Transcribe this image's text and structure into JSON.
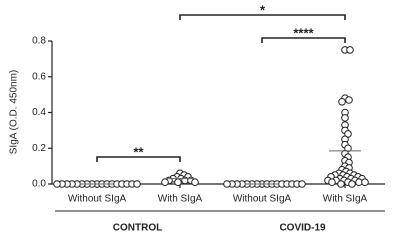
{
  "chart_data": {
    "type": "strip",
    "y_label": "SIgA (O.D. 450nm)",
    "categories": [
      "Without SIgA",
      "With SIgA",
      "Without SIgA",
      "With SIgA"
    ],
    "groups": [
      {
        "name": "CONTROL",
        "categories": [
          0,
          1
        ]
      },
      {
        "name": "COVID-19",
        "categories": [
          2,
          3
        ]
      }
    ],
    "values": [
      [
        0,
        0,
        0,
        0,
        0,
        0,
        0,
        0,
        0,
        0,
        0,
        0,
        0,
        0,
        0,
        0,
        0
      ],
      [
        0.06,
        0.05,
        0.04,
        0.04,
        0.03,
        0.03,
        0.02,
        0.02,
        0.02,
        0.01,
        0.01,
        0.01
      ],
      [
        0,
        0,
        0,
        0,
        0,
        0,
        0,
        0,
        0,
        0,
        0,
        0,
        0,
        0,
        0,
        0
      ],
      [
        0.75,
        0.75,
        0.48,
        0.47,
        0.46,
        0.4,
        0.37,
        0.33,
        0.3,
        0.28,
        0.25,
        0.22,
        0.2,
        0.17,
        0.15,
        0.13,
        0.12,
        0.1,
        0.09,
        0.08,
        0.07,
        0.06,
        0.06,
        0.05,
        0.05,
        0.05,
        0.04,
        0.04,
        0.04,
        0.03,
        0.03,
        0.03,
        0.02,
        0.02,
        0.02,
        0.02,
        0.01,
        0.01,
        0.01,
        0.01,
        0,
        0
      ]
    ],
    "center_lines": [
      0,
      0.03,
      0,
      0.185
    ],
    "comparisons": [
      {
        "from": 0,
        "to": 1,
        "label": "**"
      },
      {
        "from": 2,
        "to": 3,
        "label": "****"
      },
      {
        "from": 1,
        "to": 3,
        "label": "*"
      }
    ],
    "color": "#222222",
    "ylim": [
      0,
      0.8
    ],
    "yticks": [
      {
        "value": 0,
        "label": "0.0"
      },
      {
        "value": 0.2,
        "label": "0.2"
      },
      {
        "value": 0.4,
        "label": "0.4"
      },
      {
        "value": 0.6,
        "label": "0.6"
      },
      {
        "value": 0.8,
        "label": "0.8"
      }
    ]
  }
}
